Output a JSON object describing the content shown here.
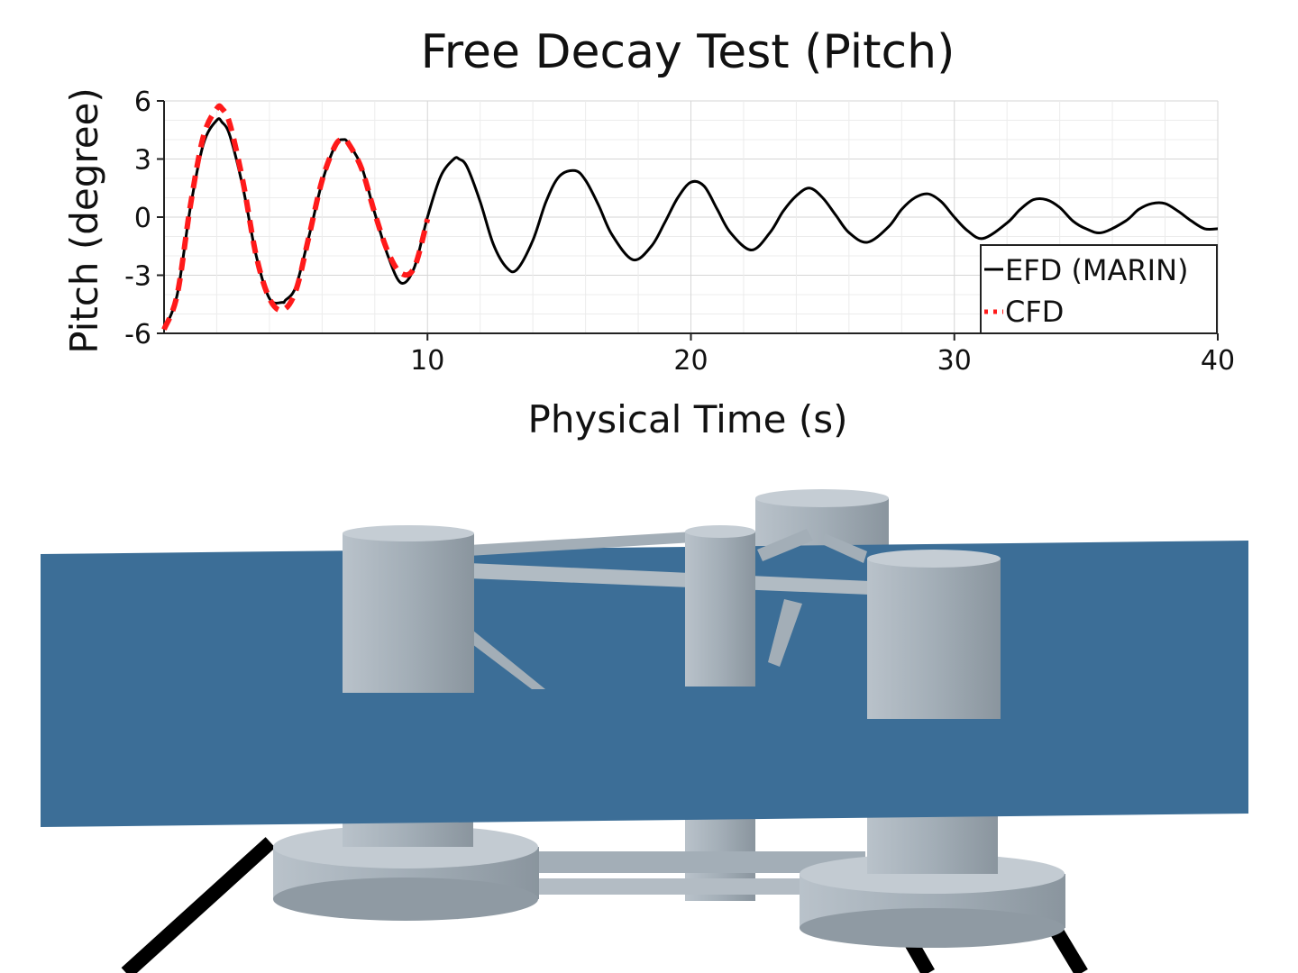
{
  "chart_data": {
    "type": "line",
    "title": "Free Decay Test (Pitch)",
    "xlabel": "Physical Time (s)",
    "ylabel": "Pitch (degree)",
    "xlim": [
      0,
      40
    ],
    "ylim": [
      -6,
      6
    ],
    "xticks": [
      "10",
      "20",
      "30",
      "40"
    ],
    "yticks": [
      "6",
      "3",
      "0",
      "-3",
      "-6"
    ],
    "grid": true,
    "legend_position": "bottom-right",
    "series": [
      {
        "name": "EFD (MARIN)",
        "style": "solid",
        "color": "#000000",
        "x": [
          0.0,
          0.5,
          1.0,
          1.5,
          2.0,
          2.2,
          2.5,
          3.0,
          3.5,
          4.0,
          4.5,
          4.6,
          5.0,
          5.5,
          6.0,
          6.5,
          6.8,
          7.0,
          7.5,
          8.0,
          8.5,
          9.0,
          9.5,
          10.0,
          10.5,
          11.0,
          11.2,
          11.5,
          12.0,
          12.5,
          13.0,
          13.4,
          14.0,
          14.5,
          15.0,
          15.6,
          16.0,
          16.5,
          17.0,
          17.8,
          18.5,
          19.0,
          19.5,
          20.0,
          20.5,
          21.0,
          21.5,
          22.3,
          23.0,
          23.5,
          24.0,
          24.5,
          25.0,
          25.5,
          26.0,
          26.7,
          27.5,
          28.0,
          28.5,
          29.0,
          29.5,
          30.0,
          30.5,
          31.1,
          32.0,
          32.5,
          33.0,
          33.5,
          34.0,
          34.5,
          35.0,
          35.6,
          36.5,
          37.0,
          37.5,
          38.0,
          38.5,
          39.0,
          39.5,
          40.0
        ],
        "y": [
          -5.8,
          -4.0,
          0.5,
          3.8,
          5.0,
          4.9,
          4.2,
          1.5,
          -2.0,
          -4.2,
          -4.4,
          -4.3,
          -3.6,
          -1.0,
          1.8,
          3.7,
          4.0,
          3.8,
          2.6,
          0.2,
          -2.0,
          -3.4,
          -2.6,
          0.0,
          2.1,
          3.0,
          3.0,
          2.6,
          0.8,
          -1.4,
          -2.6,
          -2.7,
          -1.2,
          0.8,
          2.1,
          2.4,
          1.9,
          0.6,
          -0.9,
          -2.2,
          -1.5,
          -0.3,
          1.0,
          1.8,
          1.6,
          0.4,
          -0.8,
          -1.7,
          -0.8,
          0.3,
          1.1,
          1.5,
          1.0,
          0.1,
          -0.8,
          -1.3,
          -0.5,
          0.4,
          1.0,
          1.2,
          0.8,
          0.0,
          -0.7,
          -1.1,
          -0.3,
          0.4,
          0.9,
          0.9,
          0.5,
          -0.2,
          -0.6,
          -0.8,
          -0.2,
          0.4,
          0.7,
          0.7,
          0.3,
          -0.2,
          -0.6,
          -0.6
        ]
      },
      {
        "name": "CFD",
        "style": "dashed",
        "color": "#ff1a1a",
        "x": [
          0.0,
          0.5,
          1.0,
          1.5,
          2.0,
          2.2,
          2.5,
          3.0,
          3.5,
          4.0,
          4.5,
          5.0,
          5.5,
          6.0,
          6.5,
          6.8,
          7.0,
          7.5,
          8.0,
          8.5,
          9.0,
          9.5,
          10.0
        ],
        "y": [
          -5.8,
          -4.0,
          0.6,
          4.2,
          5.6,
          5.6,
          4.8,
          1.8,
          -2.0,
          -4.2,
          -4.8,
          -3.8,
          -1.0,
          1.9,
          3.7,
          4.0,
          3.8,
          2.5,
          0.2,
          -1.8,
          -2.9,
          -2.6,
          -0.1
        ]
      }
    ]
  },
  "scene": {
    "water_color": "#3c6e97",
    "hull_color": "#a3aeb7",
    "hull_dark": "#7d8891",
    "hull_light": "#c5cdd4",
    "mooring_color": "#000000"
  }
}
